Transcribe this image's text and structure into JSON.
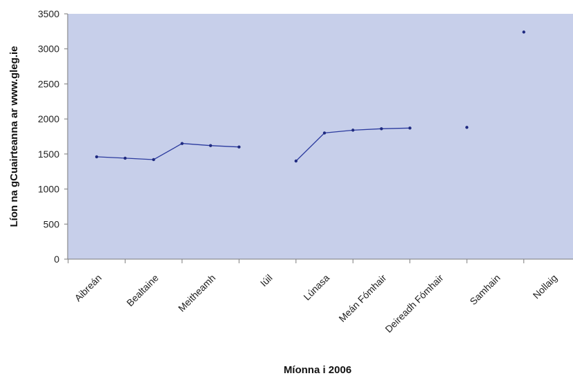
{
  "chart_data": {
    "type": "line",
    "categories": [
      "Aibreán",
      "Bealtaine",
      "Meitheamh",
      "Iúil",
      "Lúnasa",
      "Meán Fómhair",
      "Deireadh Fómhair",
      "Samhain",
      "Nollaig"
    ],
    "x": [
      1,
      1.5,
      2,
      2.5,
      3,
      3.5,
      4,
      4.5,
      5,
      5.5,
      6,
      6.5,
      7,
      7.5,
      8,
      8.5,
      9
    ],
    "values": [
      1460,
      1440,
      1420,
      1650,
      1620,
      1600,
      null,
      1400,
      1800,
      1840,
      1860,
      1870,
      null,
      1880,
      null,
      3240,
      null
    ],
    "series": [
      {
        "name": "",
        "values": [
          1460,
          1440,
          1420,
          1650,
          1620,
          1600,
          null,
          1400,
          1800,
          1840,
          1860,
          1870,
          null,
          1880,
          null,
          3240,
          null
        ]
      }
    ],
    "title": "",
    "xlabel": "Míonna i 2006",
    "ylabel": "Líon na gCuairteanna ar www.gleg.ie",
    "ylim": [
      0,
      3500
    ],
    "yticks": [
      "0",
      "500",
      "1000",
      "1500",
      "2000",
      "2500",
      "3000",
      "3500"
    ],
    "grid": false,
    "legend": "none",
    "colors": {
      "plot_background": "#c7cfea",
      "line": "#2b3a9e",
      "marker": "#1f2a80",
      "axis": "#7a7a7a"
    }
  }
}
